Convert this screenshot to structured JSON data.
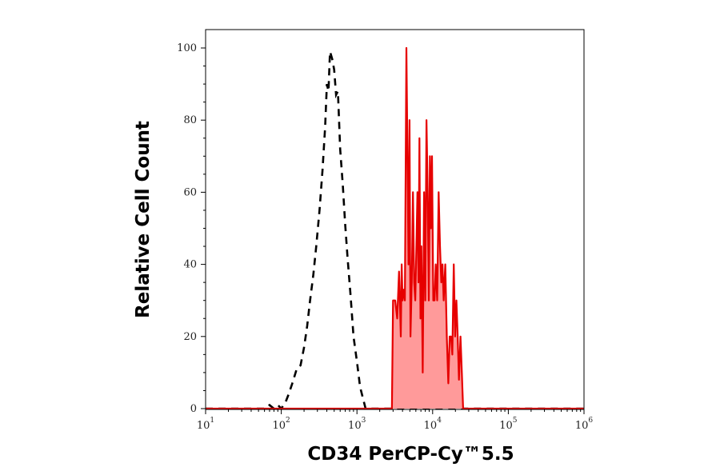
{
  "chart_data": {
    "type": "area",
    "xlabel": "CD34 PerCP-Cy™5.5",
    "ylabel": "Relative Cell Count",
    "xscale": "log",
    "xlim": [
      10,
      1000000
    ],
    "ylim": [
      0,
      100
    ],
    "y_ticks": [
      "0",
      "20",
      "40",
      "60",
      "80",
      "100"
    ],
    "x_ticks": [
      {
        "base": "10",
        "exp": "1"
      },
      {
        "base": "10",
        "exp": "2"
      },
      {
        "base": "10",
        "exp": "3"
      },
      {
        "base": "10",
        "exp": "4"
      },
      {
        "base": "10",
        "exp": "5"
      },
      {
        "base": "10",
        "exp": "6"
      }
    ],
    "grid": false,
    "series": [
      {
        "style": "dashed-black",
        "color": "#000000",
        "x": [
          10,
          60,
          70,
          80,
          90,
          100,
          115,
          125,
          140,
          160,
          180,
          200,
          220,
          240,
          265,
          290,
          320,
          350,
          380,
          400,
          420,
          440,
          470,
          500,
          530,
          560,
          600,
          650,
          700,
          750,
          820,
          900,
          1000,
          1100,
          1300,
          1000000
        ],
        "y": [
          0,
          0,
          1,
          0,
          1,
          0,
          2,
          4,
          7,
          11,
          12,
          17,
          23,
          30,
          37,
          45,
          55,
          66,
          78,
          90,
          88,
          99,
          97,
          94,
          87,
          88,
          72,
          62,
          51,
          42,
          32,
          20,
          13,
          6,
          0,
          0
        ]
      },
      {
        "style": "filled-red",
        "color": "#e60000",
        "fill": "#ff9a9a",
        "x": [
          10,
          2900,
          3000,
          3200,
          3400,
          3600,
          3800,
          3900,
          4000,
          4150,
          4300,
          4500,
          4700,
          4800,
          4950,
          5100,
          5300,
          5500,
          5700,
          5900,
          6100,
          6300,
          6500,
          6700,
          6900,
          7100,
          7400,
          7700,
          8000,
          8300,
          8600,
          8900,
          9200,
          9500,
          9800,
          10200,
          10600,
          11000,
          11500,
          12000,
          12500,
          13000,
          13500,
          14000,
          14700,
          15400,
          16100,
          16800,
          17500,
          18200,
          19000,
          19800,
          20600,
          21400,
          22300,
          23300,
          24300,
          25300,
          26300,
          27300,
          28500,
          1000000
        ],
        "y": [
          0,
          0,
          30,
          30,
          25,
          38,
          20,
          40,
          30,
          33,
          30,
          100,
          60,
          40,
          80,
          20,
          35,
          60,
          35,
          30,
          45,
          60,
          35,
          75,
          25,
          45,
          10,
          60,
          30,
          80,
          60,
          30,
          70,
          50,
          70,
          30,
          30,
          40,
          30,
          60,
          45,
          35,
          40,
          30,
          40,
          20,
          7,
          20,
          20,
          15,
          40,
          20,
          30,
          20,
          8,
          20,
          10,
          0,
          0,
          0,
          0,
          0
        ]
      }
    ]
  }
}
